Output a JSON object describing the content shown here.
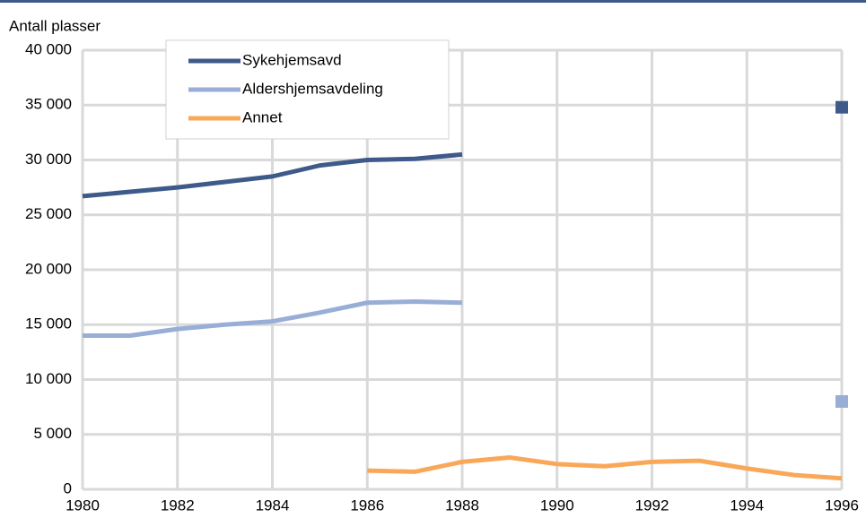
{
  "chart_data": {
    "type": "line",
    "y_label": "Antall plasser",
    "x": [
      1980,
      1981,
      1982,
      1983,
      1984,
      1985,
      1986,
      1987,
      1988,
      1989,
      1990,
      1991,
      1992,
      1993,
      1994,
      1995,
      1996
    ],
    "series": [
      {
        "name": "Sykehjemsavd",
        "color": "#3e5a8a",
        "values": [
          26700,
          27100,
          27500,
          28000,
          28500,
          29500,
          30000,
          30100,
          30500,
          null,
          null,
          null,
          null,
          null,
          null,
          null,
          34800
        ]
      },
      {
        "name": "Aldershjemsavdeling",
        "color": "#98aed6",
        "values": [
          14000,
          14000,
          14600,
          15000,
          15300,
          16100,
          17000,
          17100,
          17000,
          null,
          null,
          null,
          null,
          null,
          null,
          null,
          8000
        ]
      },
      {
        "name": "Annet",
        "color": "#f9a85a",
        "values": [
          null,
          null,
          null,
          null,
          null,
          null,
          1700,
          1600,
          2500,
          2900,
          2300,
          2100,
          2500,
          2600,
          1900,
          1300,
          1000
        ]
      }
    ],
    "xlim": [
      1980,
      1996
    ],
    "xticks": [
      1980,
      1982,
      1984,
      1986,
      1988,
      1990,
      1992,
      1994,
      1996
    ],
    "ylim": [
      0,
      40000
    ],
    "yticks": [
      0,
      {
        "value": 5000,
        "label": "5 000"
      },
      {
        "value": 10000,
        "label": "10 000"
      },
      {
        "value": 15000,
        "label": "15 000"
      },
      {
        "value": 20000,
        "label": "20 000"
      },
      {
        "value": 25000,
        "label": "25 000"
      },
      {
        "value": 30000,
        "label": "30 000"
      },
      {
        "value": 35000,
        "label": "35 000"
      },
      {
        "value": 40000,
        "label": "40 000"
      }
    ],
    "grid": true,
    "legend": "top-left"
  }
}
